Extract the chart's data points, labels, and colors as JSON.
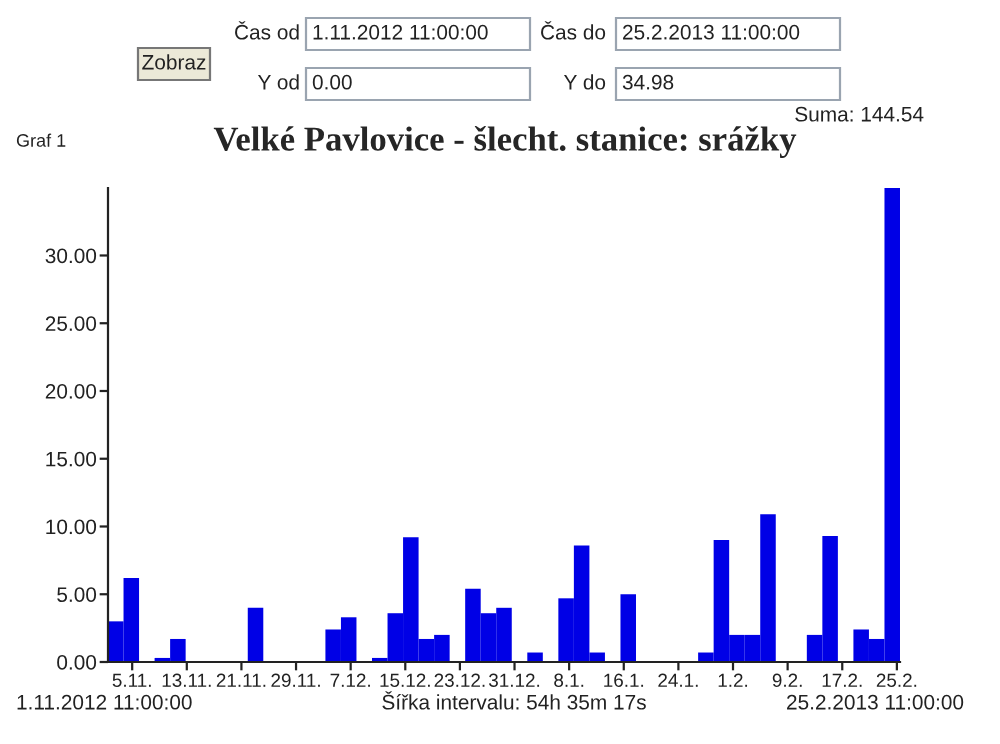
{
  "chart_data": {
    "type": "bar",
    "title": "Velké Pavlovice - šlecht. stanice: srážky",
    "x": [
      "2012-11-02T14:18",
      "2012-11-04T20:53",
      "2012-11-07T03:28",
      "2012-11-09T10:04",
      "2012-11-11T16:39",
      "2012-11-13T23:14",
      "2012-11-16T05:49",
      "2012-11-18T12:25",
      "2012-11-20T19:00",
      "2012-11-23T01:35",
      "2012-11-25T08:11",
      "2012-11-27T14:46",
      "2012-11-29T21:21",
      "2012-12-02T03:56",
      "2012-12-04T10:32",
      "2012-12-06T17:07",
      "2012-12-08T23:42",
      "2012-12-11T06:18",
      "2012-12-13T12:53",
      "2012-12-15T19:28",
      "2012-12-18T02:04",
      "2012-12-20T08:39",
      "2012-12-22T15:14",
      "2012-12-24T21:49",
      "2012-12-27T04:25",
      "2012-12-29T11:00",
      "2012-12-31T17:35",
      "2013-01-03T00:11",
      "2013-01-05T06:46",
      "2013-01-07T13:21",
      "2013-01-09T19:56",
      "2013-01-12T02:32",
      "2013-01-14T09:07",
      "2013-01-16T15:42",
      "2013-01-18T22:18",
      "2013-01-21T04:53",
      "2013-01-23T11:28",
      "2013-01-25T18:04",
      "2013-01-28T00:39",
      "2013-01-30T07:14",
      "2013-02-01T13:49",
      "2013-02-03T20:25",
      "2013-02-06T03:00",
      "2013-02-08T09:35",
      "2013-02-10T16:11",
      "2013-02-12T22:46",
      "2013-02-15T05:21",
      "2013-02-17T11:56",
      "2013-02-19T18:32",
      "2013-02-22T01:07",
      "2013-02-24T07:42"
    ],
    "values": [
      3.0,
      6.2,
      0,
      0.3,
      1.7,
      0,
      0,
      0,
      0,
      4.0,
      0,
      0,
      0,
      0,
      2.4,
      3.3,
      0,
      0.3,
      3.6,
      9.2,
      1.7,
      2.0,
      0,
      5.4,
      3.6,
      4.0,
      0,
      0.7,
      0,
      4.7,
      8.6,
      0.7,
      0,
      5.0,
      0,
      0,
      0,
      0,
      0.7,
      9.0,
      2.0,
      2.0,
      10.9,
      0,
      0,
      2.0,
      9.3,
      0,
      2.4,
      1.7,
      34.98
    ],
    "color": "#0000e6",
    "xlim": [
      "2012-11-01T11:00",
      "2013-02-25T11:00"
    ],
    "xticks": [
      {
        "value": "2012-11-05",
        "label": "5.11."
      },
      {
        "value": "2012-11-13",
        "label": "13.11."
      },
      {
        "value": "2012-11-21",
        "label": "21.11."
      },
      {
        "value": "2012-11-29",
        "label": "29.11."
      },
      {
        "value": "2012-12-07",
        "label": "7.12."
      },
      {
        "value": "2012-12-15",
        "label": "15.12."
      },
      {
        "value": "2012-12-23",
        "label": "23.12."
      },
      {
        "value": "2012-12-31",
        "label": "31.12."
      },
      {
        "value": "2013-01-08",
        "label": "8.1."
      },
      {
        "value": "2013-01-16",
        "label": "16.1."
      },
      {
        "value": "2013-01-24",
        "label": "24.1."
      },
      {
        "value": "2013-02-01",
        "label": "1.2."
      },
      {
        "value": "2013-02-09",
        "label": "9.2."
      },
      {
        "value": "2013-02-17",
        "label": "17.2."
      },
      {
        "value": "2013-02-25",
        "label": "25.2."
      }
    ],
    "ylim": [
      0,
      34.98
    ],
    "yticks": [
      {
        "value": 0,
        "label": "0.00"
      },
      {
        "value": 5,
        "label": "5.00"
      },
      {
        "value": 10,
        "label": "10.00"
      },
      {
        "value": 15,
        "label": "15.00"
      },
      {
        "value": 20,
        "label": "20.00"
      },
      {
        "value": 25,
        "label": "25.00"
      },
      {
        "value": 30,
        "label": "30.00"
      }
    ],
    "annotations": [
      "Zobraz",
      "Čas od",
      "1.11.2012 11:00:00",
      "Čas do",
      "25.2.2013 11:00:00",
      "Y od",
      "0.00",
      "Y do",
      "34.98",
      "Suma: 144.54",
      "Graf 1",
      "1.11.2012 11:00:00",
      "Šířka intervalu: 54h 35m 17s",
      "25.2.2013 11:00:00"
    ]
  }
}
